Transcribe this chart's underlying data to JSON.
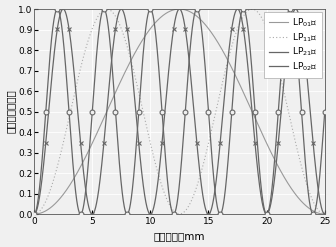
{
  "title": "",
  "xlabel": "传播距离，mm",
  "ylabel": "归一化能量曲线",
  "xlim": [
    0,
    25
  ],
  "ylim": [
    0,
    1
  ],
  "xticks": [
    0,
    5,
    10,
    15,
    20,
    25
  ],
  "yticks": [
    0.0,
    0.1,
    0.2,
    0.3,
    0.4,
    0.5,
    0.6,
    0.7,
    0.8,
    0.9,
    1.0
  ],
  "legend": [
    "LP$_{01}$模",
    "LP$_{11}$模",
    "LP$_{21}$模",
    "LP$_{02}$模"
  ],
  "background_color": "#f0f0f0",
  "grid_color": "#ffffff",
  "lp01_color": "#999999",
  "lp11_color": "#aaaaaa",
  "lp21_color": "#666666",
  "lp02_color": "#666666",
  "lp01_period": 25.0,
  "lp11_period": 12.5,
  "lp21_period": 5.0,
  "lp02_period": 4.0
}
